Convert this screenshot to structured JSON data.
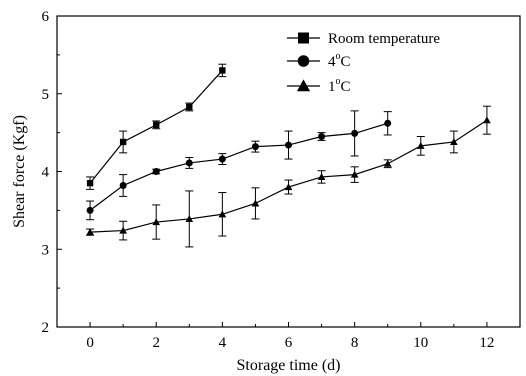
{
  "chart_data": {
    "type": "line",
    "title": "",
    "xlabel": "Storage time (d)",
    "ylabel": "Shear force (Kgf)",
    "xlim": [
      -1,
      13
    ],
    "ylim": [
      2,
      6
    ],
    "xticks": [
      0,
      2,
      4,
      6,
      8,
      10,
      12
    ],
    "yticks": [
      2,
      3,
      4,
      5,
      6
    ],
    "grid": false,
    "legend_position": "top-right",
    "series": [
      {
        "name": "Room temperature",
        "legend_main": "Room temperature",
        "legend_sup": "",
        "legend_after": "",
        "marker": "square",
        "x": [
          0,
          1,
          2,
          3,
          4
        ],
        "y": [
          3.85,
          4.38,
          4.6,
          4.83,
          5.3
        ],
        "err": [
          0.08,
          0.14,
          0.05,
          0.05,
          0.08
        ]
      },
      {
        "name": "4oC",
        "legend_main": "4",
        "legend_sup": "o",
        "legend_after": "C",
        "marker": "circle",
        "x": [
          0,
          1,
          2,
          3,
          4,
          5,
          6,
          7,
          8,
          9
        ],
        "y": [
          3.5,
          3.82,
          4.0,
          4.11,
          4.16,
          4.32,
          4.34,
          4.45,
          4.49,
          4.62
        ],
        "err": [
          0.12,
          0.14,
          0.03,
          0.07,
          0.07,
          0.07,
          0.18,
          0.05,
          0.29,
          0.15
        ]
      },
      {
        "name": "1oC",
        "legend_main": "1",
        "legend_sup": "o",
        "legend_after": "C",
        "marker": "triangle",
        "x": [
          0,
          1,
          2,
          3,
          4,
          5,
          6,
          7,
          8,
          9,
          10,
          11,
          12
        ],
        "y": [
          3.22,
          3.24,
          3.35,
          3.39,
          3.45,
          3.59,
          3.8,
          3.93,
          3.96,
          4.1,
          4.33,
          4.38,
          4.66
        ],
        "err": [
          0.04,
          0.12,
          0.22,
          0.36,
          0.28,
          0.2,
          0.09,
          0.08,
          0.1,
          0.05,
          0.12,
          0.14,
          0.18
        ]
      }
    ]
  }
}
